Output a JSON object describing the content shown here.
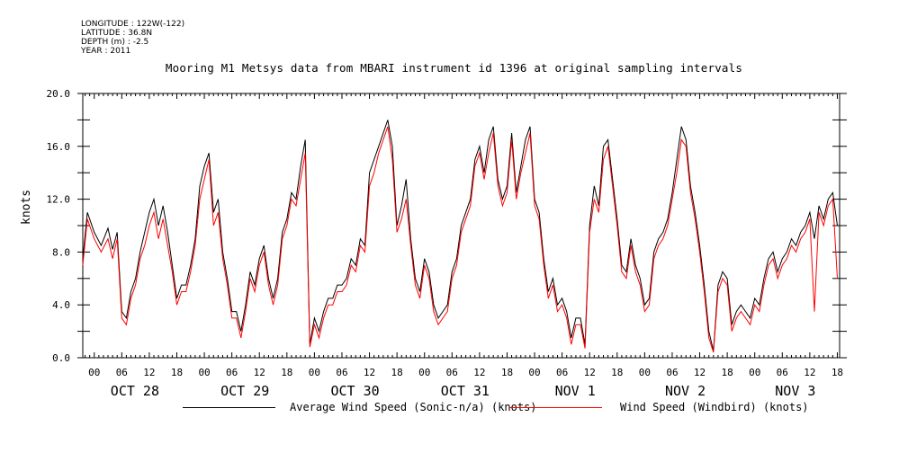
{
  "header": {
    "longitude": "LONGITUDE : 122W(-122)",
    "latitude": "LATITUDE : 36.8N",
    "depth": "DEPTH (m) : -2.5",
    "year": "YEAR : 2011"
  },
  "chart_data": {
    "type": "line",
    "title": "Mooring M1 Metsys data from MBARI instrument id 1396 at original sampling intervals",
    "xlabel": "",
    "ylabel": "knots",
    "ylim": [
      0,
      20
    ],
    "yticks": [
      "0.0",
      "4.0",
      "8.0",
      "12.0",
      "16.0",
      "20.0"
    ],
    "xlim_hours": [
      -2.5,
      162.5
    ],
    "xtick_labels": [
      "00",
      "06",
      "12",
      "18",
      "00",
      "06",
      "12",
      "18",
      "00",
      "06",
      "12",
      "18",
      "00",
      "06",
      "12",
      "18",
      "00",
      "06",
      "12",
      "18",
      "00",
      "06",
      "12",
      "18",
      "00",
      "06",
      "12",
      "18"
    ],
    "day_labels": [
      "OCT 28",
      "OCT 29",
      "OCT 30",
      "OCT 31",
      "NOV  1",
      "NOV  2",
      "NOV  3"
    ],
    "legend_placement": "bottom",
    "grid": false,
    "series": [
      {
        "name": "Average Wind Speed (Sonic-n/a) (knots)",
        "color": "#000000",
        "x": [
          -2.5,
          -1.5,
          0,
          1.5,
          3,
          4,
          5,
          6,
          7,
          8,
          9,
          10,
          11,
          12,
          13,
          14,
          15,
          16,
          17,
          18,
          19,
          20,
          21,
          22,
          23,
          24,
          25,
          26,
          27,
          28,
          29,
          30,
          31,
          32,
          33,
          34,
          35,
          36,
          37,
          38,
          39,
          40,
          41,
          42,
          43,
          44,
          45,
          46,
          47,
          48,
          49,
          50,
          51,
          52,
          53,
          54,
          55,
          56,
          57,
          58,
          59,
          60,
          61,
          62,
          63,
          64,
          65,
          66,
          67,
          68,
          69,
          70,
          71,
          72,
          73,
          74,
          75,
          76,
          77,
          78,
          79,
          80,
          81,
          82,
          83,
          84,
          85,
          86,
          87,
          88,
          89,
          90,
          91,
          92,
          93,
          94,
          95,
          96,
          97,
          98,
          99,
          100,
          101,
          102,
          103,
          104,
          105,
          106,
          107,
          108,
          109,
          110,
          111,
          112,
          113,
          114,
          115,
          116,
          117,
          118,
          119,
          120,
          121,
          122,
          123,
          124,
          125,
          126,
          127,
          128,
          129,
          130,
          131,
          132,
          133,
          134,
          135,
          136,
          137,
          138,
          139,
          140,
          141,
          142,
          143,
          144,
          145,
          146,
          147,
          148,
          149,
          150,
          151,
          152,
          153,
          154,
          155,
          156,
          157,
          158,
          159,
          160,
          161,
          162
        ],
        "values": [
          7.5,
          11.0,
          9.5,
          8.5,
          9.8,
          8.2,
          9.5,
          3.5,
          3.0,
          5.0,
          6.0,
          8.0,
          9.5,
          11.0,
          12.0,
          10.0,
          11.5,
          9.5,
          7.0,
          4.5,
          5.5,
          5.5,
          7.0,
          9.0,
          13.0,
          14.5,
          15.5,
          11.0,
          12.0,
          8.0,
          6.0,
          3.5,
          3.5,
          2.0,
          4.0,
          6.5,
          5.5,
          7.5,
          8.5,
          6.0,
          4.5,
          6.0,
          9.5,
          10.5,
          12.5,
          12.0,
          14.5,
          16.5,
          1.0,
          3.0,
          2.0,
          3.5,
          4.5,
          4.5,
          5.5,
          5.5,
          6.0,
          7.5,
          7.0,
          9.0,
          8.5,
          14.0,
          15.0,
          16.0,
          17.0,
          18.0,
          16.0,
          10.0,
          11.5,
          13.5,
          9.0,
          6.0,
          5.0,
          7.5,
          6.5,
          4.0,
          3.0,
          3.5,
          4.0,
          6.5,
          7.5,
          10.0,
          11.0,
          12.0,
          15.0,
          16.0,
          14.0,
          16.5,
          17.5,
          13.5,
          12.0,
          13.0,
          17.0,
          12.5,
          14.5,
          16.5,
          17.5,
          12.0,
          11.0,
          7.5,
          5.0,
          6.0,
          4.0,
          4.5,
          3.5,
          1.5,
          3.0,
          3.0,
          1.0,
          10.0,
          13.0,
          11.5,
          16.0,
          16.5,
          13.5,
          10.5,
          7.0,
          6.5,
          9.0,
          7.0,
          6.0,
          4.0,
          4.5,
          8.0,
          9.0,
          9.5,
          10.5,
          12.5,
          15.0,
          17.5,
          16.5,
          13.0,
          11.0,
          8.5,
          5.5,
          2.0,
          0.5,
          5.5,
          6.5,
          6.0,
          2.5,
          3.5,
          4.0,
          3.5,
          3.0,
          4.5,
          4.0,
          6.0,
          7.5,
          8.0,
          6.5,
          7.5,
          8.0,
          9.0,
          8.5,
          9.5,
          10.0,
          11.0,
          9.0,
          11.5,
          10.5,
          12.0,
          12.5,
          10.0
        ]
      },
      {
        "name": "Wind Speed (Windbird) (knots)",
        "color": "#ff0000",
        "x": [
          -2.5,
          -1.5,
          0,
          1.5,
          3,
          4,
          5,
          6,
          7,
          8,
          9,
          10,
          11,
          12,
          13,
          14,
          15,
          16,
          17,
          18,
          19,
          20,
          21,
          22,
          23,
          24,
          25,
          26,
          27,
          28,
          29,
          30,
          31,
          32,
          33,
          34,
          35,
          36,
          37,
          38,
          39,
          40,
          41,
          42,
          43,
          44,
          45,
          46,
          47,
          48,
          49,
          50,
          51,
          52,
          53,
          54,
          55,
          56,
          57,
          58,
          59,
          60,
          61,
          62,
          63,
          64,
          65,
          66,
          67,
          68,
          69,
          70,
          71,
          72,
          73,
          74,
          75,
          76,
          77,
          78,
          79,
          80,
          81,
          82,
          83,
          84,
          85,
          86,
          87,
          88,
          89,
          90,
          91,
          92,
          93,
          94,
          95,
          96,
          97,
          98,
          99,
          100,
          101,
          102,
          103,
          104,
          105,
          106,
          107,
          108,
          109,
          110,
          111,
          112,
          113,
          114,
          115,
          116,
          117,
          118,
          119,
          120,
          121,
          122,
          123,
          124,
          125,
          126,
          127,
          128,
          129,
          130,
          131,
          132,
          133,
          134,
          135,
          136,
          137,
          138,
          139,
          140,
          141,
          142,
          143,
          144,
          145,
          146,
          147,
          148,
          149,
          150,
          151,
          152,
          153,
          154,
          155,
          156,
          157,
          158,
          159,
          160,
          161,
          162
        ],
        "values": [
          7.0,
          10.5,
          9.0,
          8.0,
          9.0,
          7.5,
          9.0,
          3.0,
          2.5,
          4.5,
          5.5,
          7.5,
          8.5,
          10.0,
          11.0,
          9.0,
          10.5,
          8.5,
          6.5,
          4.0,
          5.0,
          5.0,
          6.5,
          8.5,
          12.0,
          13.5,
          15.0,
          10.0,
          11.0,
          7.5,
          5.5,
          3.0,
          3.0,
          1.5,
          3.5,
          6.0,
          5.0,
          7.0,
          8.0,
          5.5,
          4.0,
          5.5,
          9.0,
          10.0,
          12.0,
          11.5,
          13.5,
          15.5,
          0.8,
          2.5,
          1.5,
          3.0,
          4.0,
          4.0,
          5.0,
          5.0,
          5.5,
          7.0,
          6.5,
          8.5,
          8.0,
          13.0,
          14.0,
          15.5,
          16.5,
          17.5,
          15.0,
          9.5,
          10.5,
          12.0,
          8.5,
          5.5,
          4.5,
          7.0,
          6.0,
          3.5,
          2.5,
          3.0,
          3.5,
          6.0,
          7.0,
          9.5,
          10.5,
          11.5,
          14.5,
          15.5,
          13.5,
          15.5,
          17.0,
          13.0,
          11.5,
          12.5,
          16.5,
          12.0,
          14.0,
          15.5,
          17.0,
          11.5,
          10.5,
          7.0,
          4.5,
          5.5,
          3.5,
          4.0,
          3.0,
          1.0,
          2.5,
          2.5,
          0.7,
          9.5,
          12.0,
          11.0,
          15.0,
          16.0,
          13.0,
          10.0,
          6.5,
          6.0,
          8.5,
          6.5,
          5.5,
          3.5,
          4.0,
          7.5,
          8.5,
          9.0,
          10.0,
          12.0,
          14.0,
          16.5,
          16.0,
          12.5,
          10.5,
          8.0,
          5.0,
          1.5,
          0.4,
          5.0,
          6.0,
          5.5,
          2.0,
          3.0,
          3.5,
          3.0,
          2.5,
          4.0,
          3.5,
          5.5,
          7.0,
          7.5,
          6.0,
          7.0,
          7.5,
          8.5,
          8.0,
          9.0,
          9.5,
          10.5,
          3.5,
          11.0,
          10.0,
          11.5,
          12.0,
          6.0
        ]
      }
    ]
  }
}
